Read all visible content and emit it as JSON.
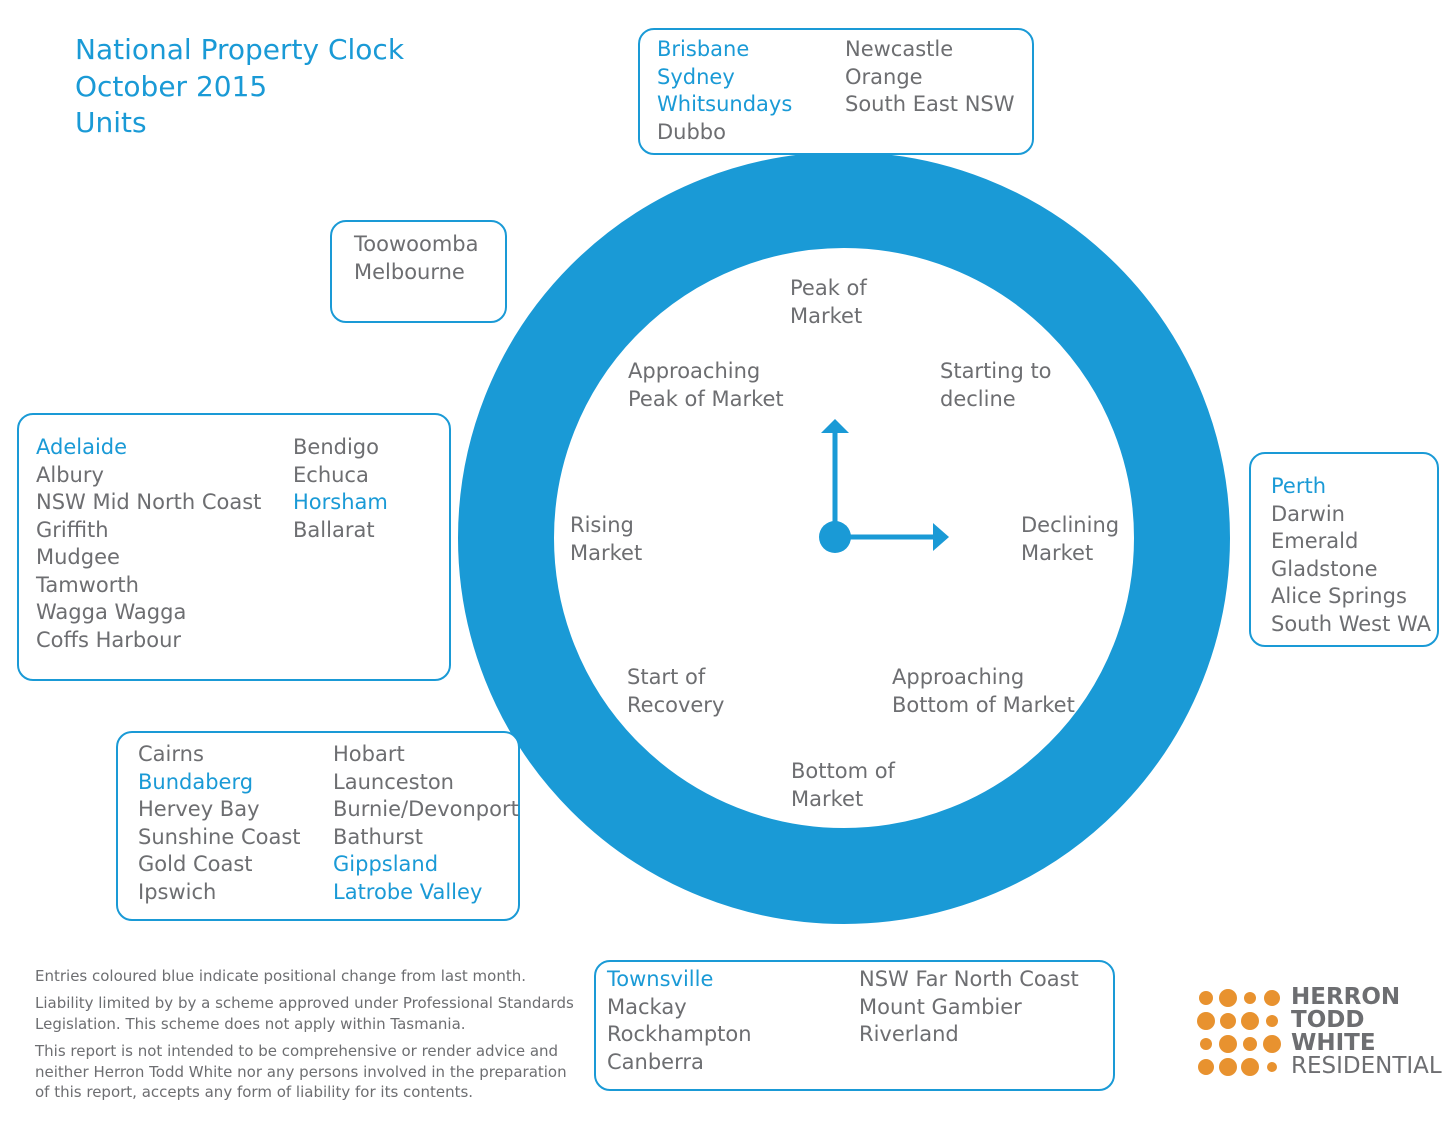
{
  "header": {
    "title_lines": [
      "National Property Clock",
      "October 2015",
      "Units"
    ]
  },
  "clock": {
    "phases": [
      {
        "lines": [
          "Peak of",
          "Market"
        ]
      },
      {
        "lines": [
          "Starting to",
          "decline"
        ]
      },
      {
        "lines": [
          "Declining",
          "Market"
        ]
      },
      {
        "lines": [
          "Approaching",
          "Bottom of Market"
        ]
      },
      {
        "lines": [
          "Bottom of",
          "Market"
        ]
      },
      {
        "lines": [
          "Start of",
          "Recovery"
        ]
      },
      {
        "lines": [
          "Rising",
          "Market"
        ]
      },
      {
        "lines": [
          "Approaching",
          "Peak of Market"
        ]
      }
    ]
  },
  "boxes": [
    {
      "columns": [
        [
          {
            "text": "Brisbane",
            "changed": true
          },
          {
            "text": "Sydney",
            "changed": true
          },
          {
            "text": "Whitsundays",
            "changed": true
          },
          {
            "text": "Dubbo",
            "changed": false
          }
        ],
        [
          {
            "text": "Newcastle",
            "changed": false
          },
          {
            "text": "Orange",
            "changed": false
          },
          {
            "text": "South East NSW",
            "changed": false
          }
        ]
      ]
    },
    {
      "columns": [
        [
          {
            "text": "Toowoomba",
            "changed": false
          },
          {
            "text": "Melbourne",
            "changed": false
          }
        ]
      ]
    },
    {
      "columns": [
        [
          {
            "text": "Adelaide",
            "changed": true
          },
          {
            "text": "Albury",
            "changed": false
          },
          {
            "text": "NSW Mid North Coast",
            "changed": false
          },
          {
            "text": "Griffith",
            "changed": false
          },
          {
            "text": "Mudgee",
            "changed": false
          },
          {
            "text": "Tamworth",
            "changed": false
          },
          {
            "text": "Wagga Wagga",
            "changed": false
          },
          {
            "text": "Coffs Harbour",
            "changed": false
          }
        ],
        [
          {
            "text": "Bendigo",
            "changed": false
          },
          {
            "text": "Echuca",
            "changed": false
          },
          {
            "text": "Horsham",
            "changed": true
          },
          {
            "text": "Ballarat",
            "changed": false
          }
        ]
      ]
    },
    {
      "columns": [
        [
          {
            "text": "Cairns",
            "changed": false
          },
          {
            "text": "Bundaberg",
            "changed": true
          },
          {
            "text": "Hervey Bay",
            "changed": false
          },
          {
            "text": "Sunshine Coast",
            "changed": false
          },
          {
            "text": "Gold Coast",
            "changed": false
          },
          {
            "text": "Ipswich",
            "changed": false
          }
        ],
        [
          {
            "text": "Hobart",
            "changed": false
          },
          {
            "text": "Launceston",
            "changed": false
          },
          {
            "text": "Burnie/Devonport",
            "changed": false
          },
          {
            "text": "Bathurst",
            "changed": false
          },
          {
            "text": "Gippsland",
            "changed": true
          },
          {
            "text": "Latrobe Valley",
            "changed": true
          }
        ]
      ]
    },
    {
      "columns": [
        [
          {
            "text": "Perth",
            "changed": true
          },
          {
            "text": "Darwin",
            "changed": false
          },
          {
            "text": "Emerald",
            "changed": false
          },
          {
            "text": "Gladstone",
            "changed": false
          },
          {
            "text": "Alice Springs",
            "changed": false
          },
          {
            "text": "South West WA",
            "changed": false
          }
        ]
      ]
    },
    {
      "columns": [
        [
          {
            "text": "Townsville",
            "changed": true
          },
          {
            "text": "Mackay",
            "changed": false
          },
          {
            "text": "Rockhampton",
            "changed": false
          },
          {
            "text": "Canberra",
            "changed": false
          }
        ],
        [
          {
            "text": "NSW Far North Coast",
            "changed": false
          },
          {
            "text": "Mount Gambier",
            "changed": false
          },
          {
            "text": "Riverland",
            "changed": false
          }
        ]
      ]
    }
  ],
  "footer": {
    "legend": "Entries coloured blue indicate positional change from last month.",
    "liability": "Liability limited by by a scheme approved under Professional Standards Legislation. This scheme does not apply within Tasmania.",
    "disclaimer": "This report is not intended to be comprehensive or render advice and neither Herron Todd White nor any persons involved in the preparation of this report, accepts any form of liability for its contents."
  },
  "logo": {
    "lines": [
      "HERRON",
      "TODD",
      "WHITE",
      "RESIDENTIAL"
    ]
  }
}
